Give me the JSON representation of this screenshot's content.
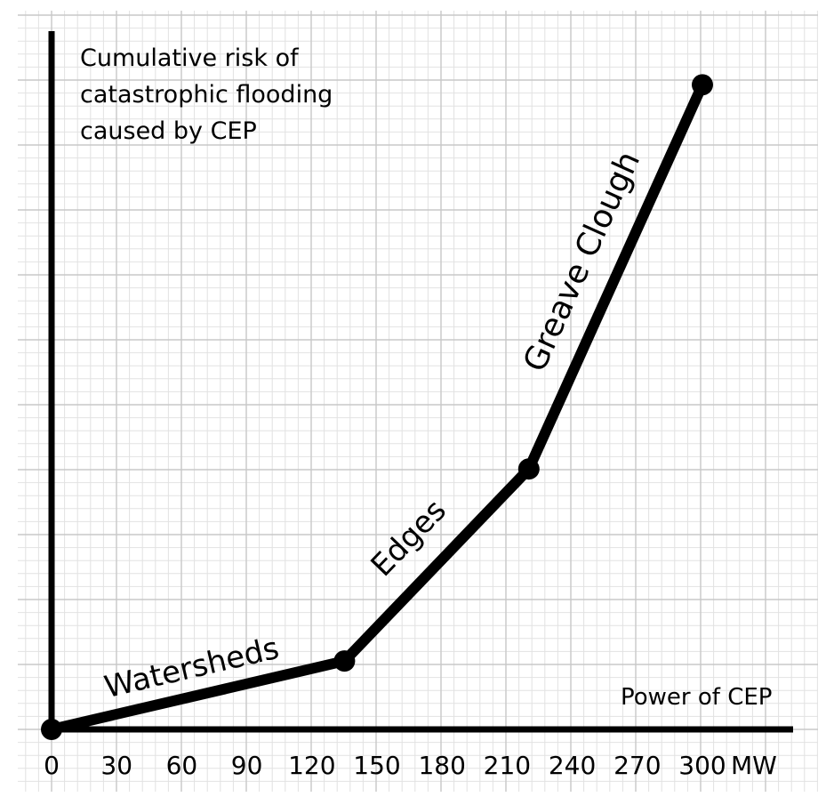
{
  "chart_data": {
    "type": "line",
    "title": "",
    "ylabel": [
      "Cumulative risk of",
      "catastrophic flooding",
      "caused by CEP"
    ],
    "xlabel": "Power of CEP",
    "x_unit": "MW",
    "xlim": [
      0,
      300
    ],
    "ylim": [
      0,
      100
    ],
    "grid": true,
    "x_ticks": [
      0,
      30,
      60,
      90,
      120,
      150,
      180,
      210,
      240,
      270,
      300
    ],
    "x_tick_labels": [
      "0",
      "30",
      "60",
      "90",
      "120",
      "150",
      "180",
      "210",
      "240",
      "270",
      "300"
    ],
    "points": [
      {
        "x": 0,
        "y": 0
      },
      {
        "x": 135,
        "y": 10.5
      },
      {
        "x": 220,
        "y": 40
      },
      {
        "x": 300,
        "y": 99
      }
    ],
    "segment_labels": [
      {
        "text": "Watersheds",
        "from_point": 0,
        "to_point": 1
      },
      {
        "text": "Edges",
        "from_point": 1,
        "to_point": 2
      },
      {
        "text": "Greave Clough",
        "from_point": 2,
        "to_point": 3
      }
    ]
  }
}
